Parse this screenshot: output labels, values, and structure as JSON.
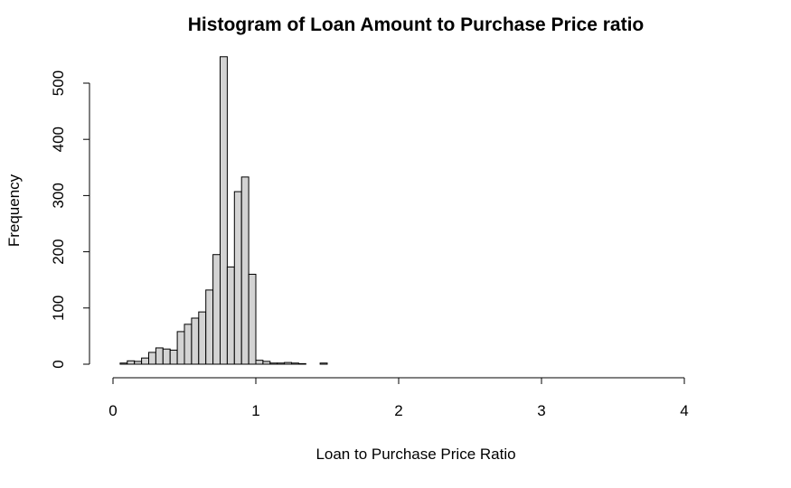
{
  "chart_data": {
    "type": "bar",
    "title": "Histogram of Loan Amount to Purchase Price ratio",
    "xlabel": "Loan to Purchase Price Ratio",
    "ylabel": "Frequency",
    "bin_width": 0.05,
    "xlim": [
      0,
      4.25
    ],
    "ylim": [
      0,
      550
    ],
    "x_ticks": [
      0,
      1,
      2,
      3,
      4
    ],
    "y_ticks": [
      0,
      100,
      200,
      300,
      400,
      500
    ],
    "bins": [
      {
        "x0": 0.05,
        "x1": 0.1,
        "count": 2
      },
      {
        "x0": 0.1,
        "x1": 0.15,
        "count": 6
      },
      {
        "x0": 0.15,
        "x1": 0.2,
        "count": 5
      },
      {
        "x0": 0.2,
        "x1": 0.25,
        "count": 11
      },
      {
        "x0": 0.25,
        "x1": 0.3,
        "count": 21
      },
      {
        "x0": 0.3,
        "x1": 0.35,
        "count": 29
      },
      {
        "x0": 0.35,
        "x1": 0.4,
        "count": 27
      },
      {
        "x0": 0.4,
        "x1": 0.45,
        "count": 25
      },
      {
        "x0": 0.45,
        "x1": 0.5,
        "count": 58
      },
      {
        "x0": 0.5,
        "x1": 0.55,
        "count": 71
      },
      {
        "x0": 0.55,
        "x1": 0.6,
        "count": 82
      },
      {
        "x0": 0.6,
        "x1": 0.65,
        "count": 93
      },
      {
        "x0": 0.65,
        "x1": 0.7,
        "count": 132
      },
      {
        "x0": 0.7,
        "x1": 0.75,
        "count": 195
      },
      {
        "x0": 0.75,
        "x1": 0.8,
        "count": 547
      },
      {
        "x0": 0.8,
        "x1": 0.85,
        "count": 173
      },
      {
        "x0": 0.85,
        "x1": 0.9,
        "count": 307
      },
      {
        "x0": 0.9,
        "x1": 0.95,
        "count": 333
      },
      {
        "x0": 0.95,
        "x1": 1.0,
        "count": 160
      },
      {
        "x0": 1.0,
        "x1": 1.05,
        "count": 7
      },
      {
        "x0": 1.05,
        "x1": 1.1,
        "count": 5
      },
      {
        "x0": 1.1,
        "x1": 1.15,
        "count": 2
      },
      {
        "x0": 1.15,
        "x1": 1.2,
        "count": 2
      },
      {
        "x0": 1.2,
        "x1": 1.25,
        "count": 3
      },
      {
        "x0": 1.25,
        "x1": 1.3,
        "count": 2
      },
      {
        "x0": 1.3,
        "x1": 1.35,
        "count": 1
      },
      {
        "x0": 1.35,
        "x1": 1.4,
        "count": 0
      },
      {
        "x0": 1.4,
        "x1": 1.45,
        "count": 0
      },
      {
        "x0": 1.45,
        "x1": 1.5,
        "count": 2
      },
      {
        "x0": 1.5,
        "x1": 4.25,
        "count": 0
      }
    ],
    "colors": {
      "bar_fill": "#d3d3d3",
      "bar_stroke": "#000000"
    },
    "grid": false,
    "legend": "none"
  }
}
